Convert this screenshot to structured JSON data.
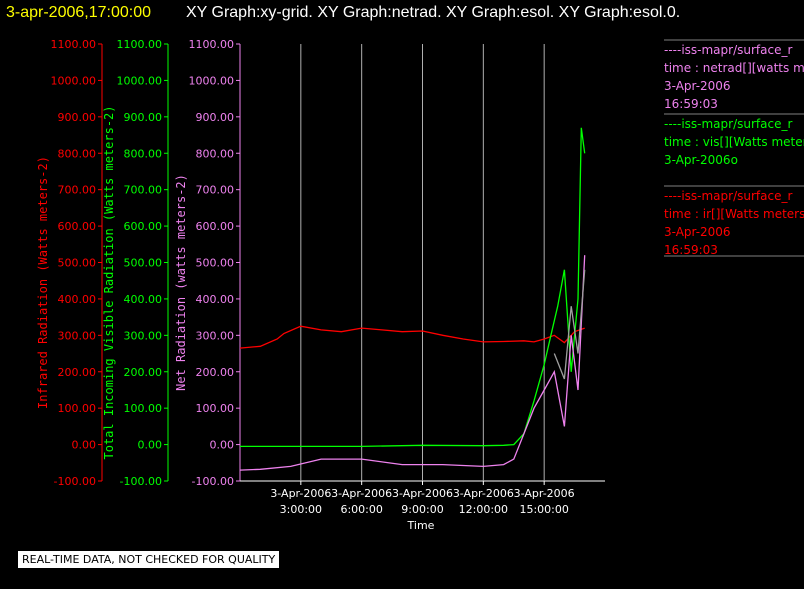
{
  "header": {
    "timestamp": "3-apr-2006,17:00:00",
    "text": "XY Graph:xy-grid.  XY Graph:netrad.  XY Graph:esol.  XY Graph:esol.0."
  },
  "colors": {
    "timestamp": "#ffff00",
    "header": "#ffffff",
    "infrared": "#ff0000",
    "visible": "#00ff00",
    "net": "#ee82ee",
    "gray": "#a0a0a0",
    "grid": "#b0b0b0"
  },
  "legend": [
    {
      "line1": "----iss-mapr/surface_r",
      "line2": "time : netrad[][watts mete",
      "line3": "3-Apr-2006",
      "line4": "16:59:03",
      "color": "#ee82ee"
    },
    {
      "line1": "----iss-mapr/surface_r",
      "line2": "time : vis[][Watts meters",
      "line3": "3-Apr-2006o",
      "line4": "",
      "color": "#00ff00"
    },
    {
      "line1": "----iss-mapr/surface_r",
      "line2": "time : ir[][Watts meters",
      "line3": "3-Apr-2006",
      "line4": "16:59:03",
      "color": "#ff0000"
    }
  ],
  "footer": "REAL-TIME DATA, NOT CHECKED FOR QUALITY",
  "chart_data": {
    "type": "line",
    "xlabel": "Time",
    "xlim": [
      "2006-04-03 00:00",
      "2006-04-03 18:00"
    ],
    "xticks": [
      {
        "date": "3-Apr-2006",
        "time": "3:00:00",
        "x": "2006-04-03 03:00"
      },
      {
        "date": "3-Apr-2006",
        "time": "6:00:00",
        "x": "2006-04-03 06:00"
      },
      {
        "date": "3-Apr-2006",
        "time": "9:00:00",
        "x": "2006-04-03 09:00"
      },
      {
        "date": "3-Apr-2006",
        "time": "12:00:00",
        "x": "2006-04-03 12:00"
      },
      {
        "date": "3-Apr-2006",
        "time": "15:00:00",
        "x": "2006-04-03 15:00"
      }
    ],
    "grid": "vertical",
    "axes": [
      {
        "id": "ir",
        "label": "Infrared Radiation (Watts meters-2)",
        "color": "#ff0000",
        "ylim": [
          -100,
          1100
        ],
        "ticks": [
          "1100.00",
          "1000.00",
          "900.00",
          "800.00",
          "700.00",
          "600.00",
          "500.00",
          "400.00",
          "300.00",
          "200.00",
          "100.00",
          "0.00",
          "-100.00"
        ]
      },
      {
        "id": "vis",
        "label": "Total Incoming Visible Radiation (Watts meters-2)",
        "color": "#00ff00",
        "ylim": [
          -100,
          1100
        ],
        "ticks": [
          "1100.00",
          "1000.00",
          "900.00",
          "800.00",
          "700.00",
          "600.00",
          "500.00",
          "400.00",
          "300.00",
          "200.00",
          "100.00",
          "0.00",
          "-100.00"
        ]
      },
      {
        "id": "net",
        "label": "Net Radiation (watts meters-2)",
        "color": "#ee82ee",
        "ylim": [
          -100,
          1100
        ],
        "ticks": [
          "1100.00",
          "1000.00",
          "900.00",
          "800.00",
          "700.00",
          "600.00",
          "500.00",
          "400.00",
          "300.00",
          "200.00",
          "100.00",
          "0.00",
          "-100.00"
        ]
      }
    ],
    "series": [
      {
        "axis": "ir",
        "color": "#ff0000",
        "x": [
          "2006-04-03 00:00",
          "2006-04-03 01:00",
          "2006-04-03 01:50",
          "2006-04-03 02:10",
          "2006-04-03 03:00",
          "2006-04-03 04:00",
          "2006-04-03 05:00",
          "2006-04-03 06:00",
          "2006-04-03 07:00",
          "2006-04-03 08:00",
          "2006-04-03 09:00",
          "2006-04-03 10:00",
          "2006-04-03 11:00",
          "2006-04-03 12:00",
          "2006-04-03 13:00",
          "2006-04-03 14:00",
          "2006-04-03 14:30",
          "2006-04-03 15:00",
          "2006-04-03 15:30",
          "2006-04-03 16:00",
          "2006-04-03 16:30",
          "2006-04-03 17:00"
        ],
        "y": [
          265,
          270,
          290,
          305,
          325,
          315,
          310,
          320,
          315,
          310,
          312,
          300,
          290,
          282,
          283,
          285,
          282,
          290,
          300,
          280,
          310,
          320
        ]
      },
      {
        "axis": "vis",
        "color": "#00ff00",
        "x": [
          "2006-04-03 00:00",
          "2006-04-03 03:00",
          "2006-04-03 06:00",
          "2006-04-03 09:00",
          "2006-04-03 12:00",
          "2006-04-03 13:00",
          "2006-04-03 13:30",
          "2006-04-03 14:00",
          "2006-04-03 14:30",
          "2006-04-03 15:00",
          "2006-04-03 15:20",
          "2006-04-03 15:40",
          "2006-04-03 16:00",
          "2006-04-03 16:20",
          "2006-04-03 16:40",
          "2006-04-03 16:50",
          "2006-04-03 17:00"
        ],
        "y": [
          -5,
          -5,
          -5,
          -2,
          -3,
          -2,
          0,
          30,
          120,
          220,
          300,
          380,
          480,
          200,
          400,
          870,
          800
        ]
      },
      {
        "axis": "net",
        "color": "#ee82ee",
        "x": [
          "2006-04-03 00:00",
          "2006-04-03 01:00",
          "2006-04-03 02:30",
          "2006-04-03 04:00",
          "2006-04-03 06:00",
          "2006-04-03 08:00",
          "2006-04-03 10:00",
          "2006-04-03 12:00",
          "2006-04-03 13:00",
          "2006-04-03 13:30",
          "2006-04-03 14:00",
          "2006-04-03 14:30",
          "2006-04-03 15:00",
          "2006-04-03 15:30",
          "2006-04-03 16:00",
          "2006-04-03 16:20",
          "2006-04-03 16:40",
          "2006-04-03 17:00"
        ],
        "y": [
          -70,
          -68,
          -60,
          -40,
          -40,
          -55,
          -55,
          -60,
          -55,
          -40,
          30,
          100,
          150,
          200,
          50,
          300,
          150,
          520
        ]
      },
      {
        "axis": "net",
        "color": "#a0a0a0",
        "x": [
          "2006-04-03 15:30",
          "2006-04-03 16:00",
          "2006-04-03 16:20",
          "2006-04-03 16:40",
          "2006-04-03 17:00"
        ],
        "y": [
          250,
          180,
          380,
          250,
          480
        ]
      }
    ]
  }
}
